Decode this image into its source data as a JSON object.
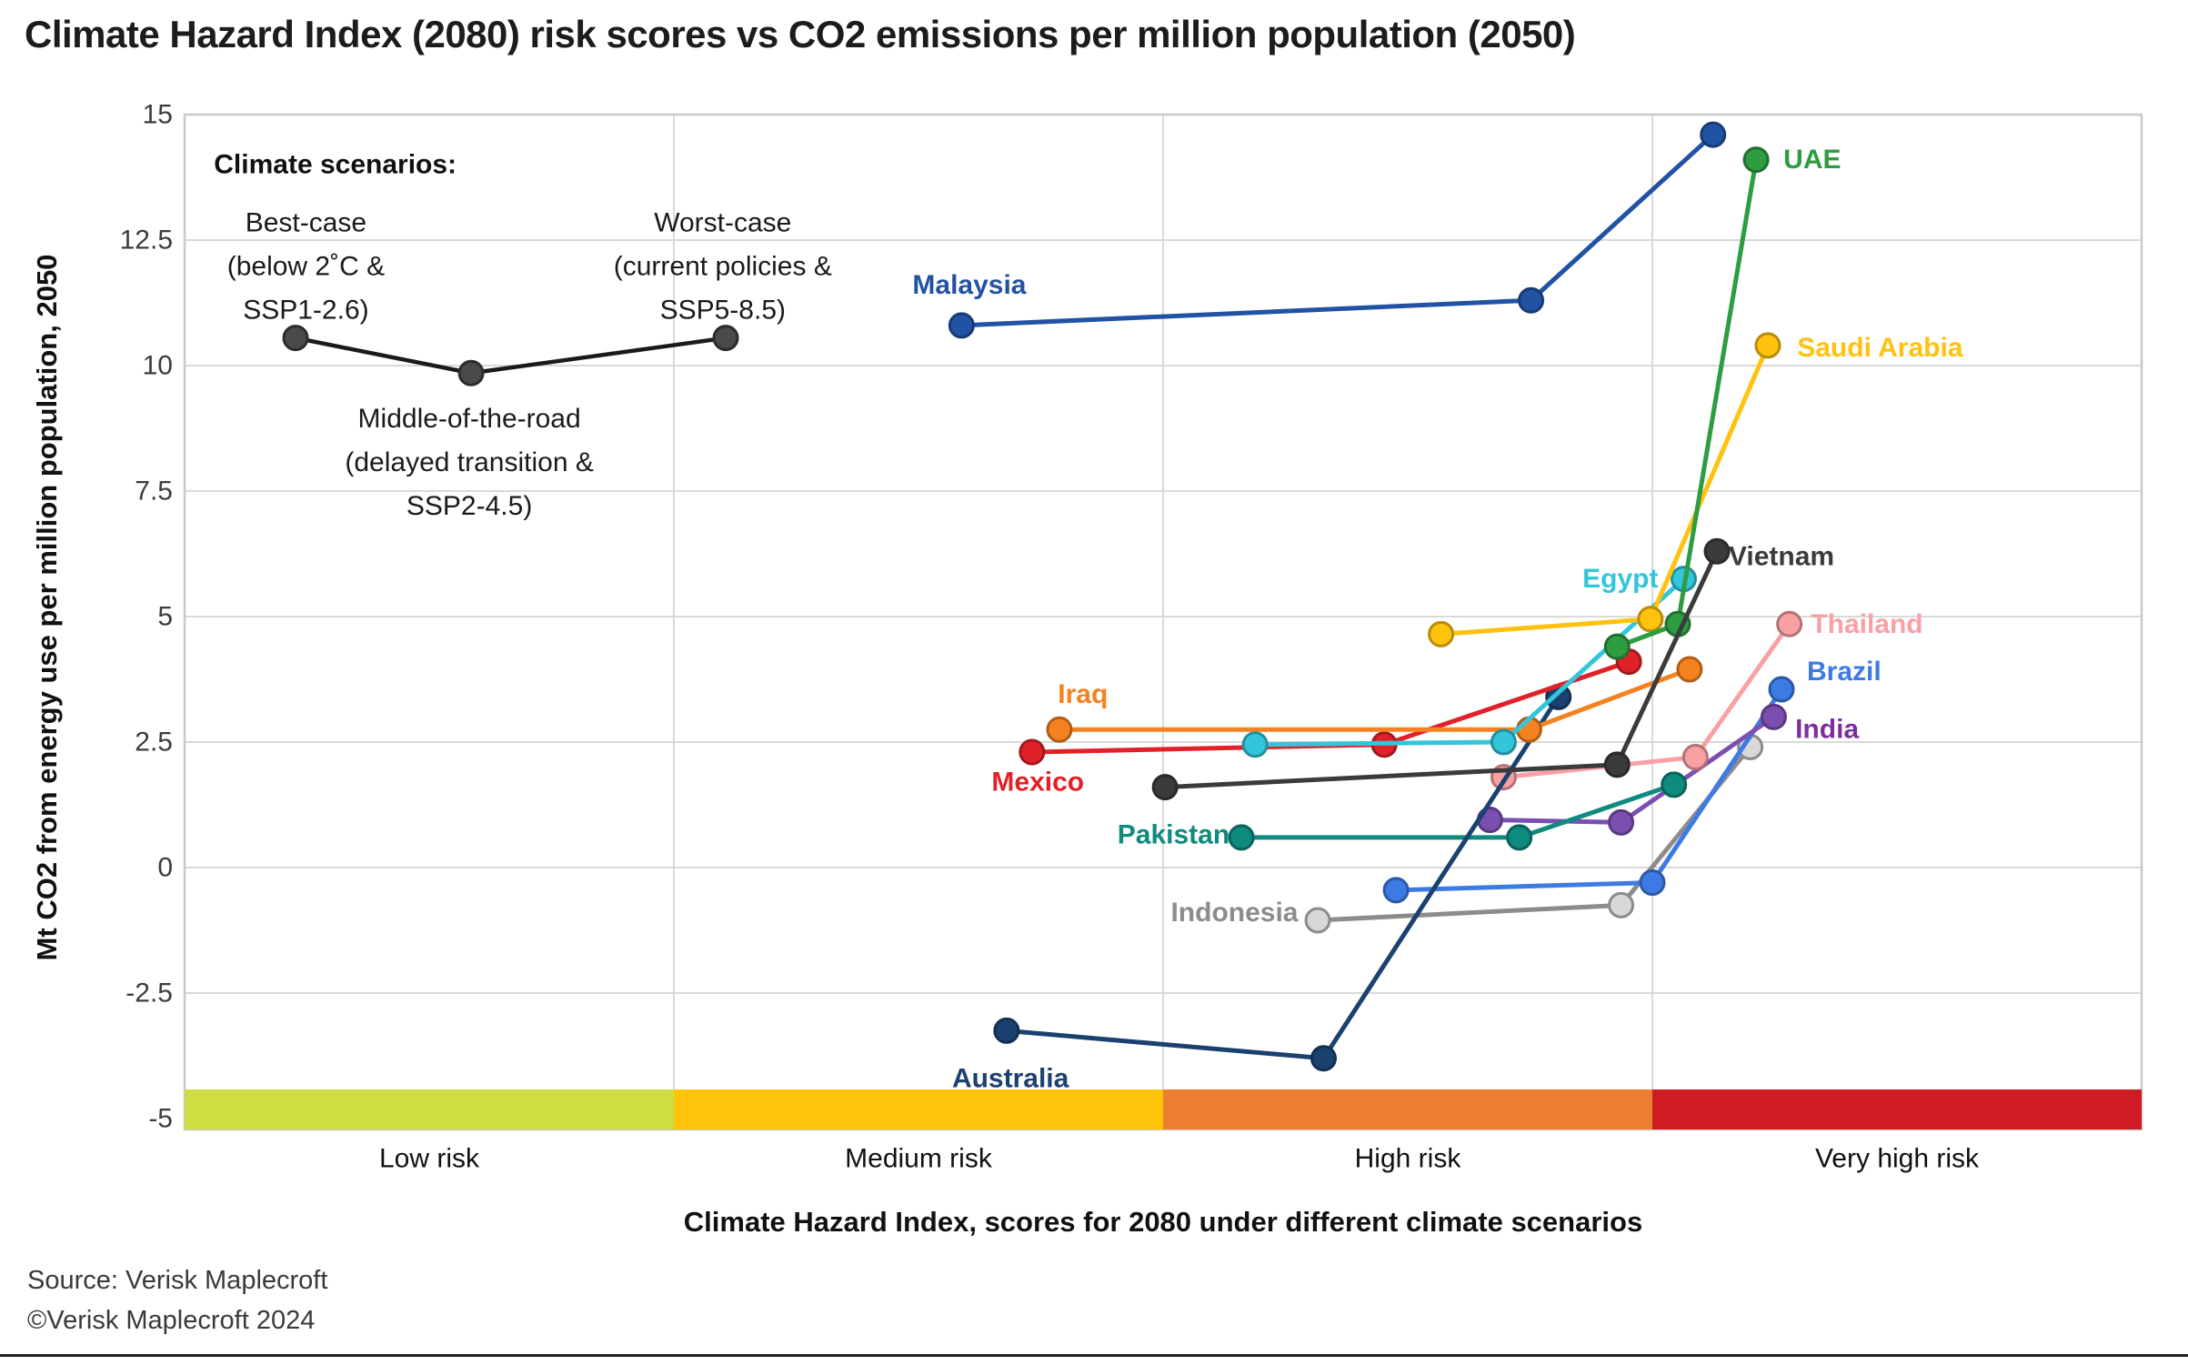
{
  "title": "Climate Hazard Index (2080) risk scores vs CO2 emissions per million population (2050)",
  "source": {
    "line1": "Source: Verisk Maplecroft",
    "line2": "©Verisk Maplecroft 2024"
  },
  "chart_data": {
    "type": "scatter",
    "title": "Climate Hazard Index (2080) risk scores vs CO2 emissions per million population (2050)",
    "xlabel": "Climate Hazard Index, scores for 2080 under different climate scenarios",
    "ylabel": "Mt CO2 from energy use per million population, 2050",
    "ylim": [
      -5,
      15
    ],
    "xlim": [
      0,
      100
    ],
    "x_unit_note": "hazard index position 0-100, shown only as quartile risk bands",
    "grid": true,
    "yticks": [
      {
        "value": 15,
        "label": "15"
      },
      {
        "value": 12.5,
        "label": "12.5"
      },
      {
        "value": 10,
        "label": "10"
      },
      {
        "value": 7.5,
        "label": "7.5"
      },
      {
        "value": 5,
        "label": "5"
      },
      {
        "value": 2.5,
        "label": "2.5"
      },
      {
        "value": 0,
        "label": "0"
      },
      {
        "value": -2.5,
        "label": "-2.5"
      },
      {
        "value": -5,
        "label": "-5"
      }
    ],
    "risk_bands": [
      {
        "label": "Low risk",
        "from": 0,
        "to": 25,
        "color": "#cedd3f"
      },
      {
        "label": "Medium risk",
        "from": 25,
        "to": 50,
        "color": "#ffc40a"
      },
      {
        "label": "High risk",
        "from": 50,
        "to": 75,
        "color": "#eb7e31"
      },
      {
        "label": "Very high risk",
        "from": 75,
        "to": 100,
        "color": "#ce1b24"
      }
    ],
    "scenarios": [
      "Best-case (below 2˚C & SSP1-2.6)",
      "Middle-of-the-road (delayed transition & SSP2-4.5)",
      "Worst-case (current policies & SSP5-8.5)"
    ],
    "scenario_legend": {
      "heading": {
        "text": "Climate scenarios:",
        "x": 1.5,
        "y": 14.0
      },
      "line_color": "#1a1a1a",
      "point_color": "#4a4a4a",
      "points": [
        {
          "x": 5.67,
          "y": 10.55
        },
        {
          "x": 14.64,
          "y": 9.85
        },
        {
          "x": 27.65,
          "y": 10.55
        }
      ],
      "labels": [
        {
          "lines": [
            "Best-case",
            "(below 2˚C &",
            "SSP1-2.6)"
          ],
          "x": 6.2,
          "y": 12.85
        },
        {
          "lines": [
            "Middle-of-the-road",
            "(delayed transition &",
            "SSP2-4.5)"
          ],
          "x": 14.55,
          "y": 8.95
        },
        {
          "lines": [
            "Worst-case",
            "(current policies &",
            "SSP5-8.5)"
          ],
          "x": 27.5,
          "y": 12.85
        }
      ]
    },
    "series": [
      {
        "name": "Indonesia",
        "color": "#8c8c8c",
        "point_fill": "#d8d8d8",
        "label_color": "#8c8c8c",
        "points": [
          [
            57.9,
            -1.05
          ],
          [
            73.4,
            -0.75
          ],
          [
            80.0,
            2.4
          ]
        ],
        "label": {
          "x": 56.9,
          "y": -0.9,
          "anchor": "end"
        }
      },
      {
        "name": "Brazil",
        "color": "#3d7be4",
        "points": [
          [
            61.9,
            -0.45
          ],
          [
            75.0,
            -0.3
          ],
          [
            81.6,
            3.55
          ]
        ],
        "label": {
          "x": 82.9,
          "y": 3.9,
          "anchor": "start"
        }
      },
      {
        "name": "India",
        "color": "#7b4fb0",
        "label_color": "#7d2e9e",
        "points": [
          [
            66.7,
            0.95
          ],
          [
            73.4,
            0.9
          ],
          [
            81.2,
            3.0
          ]
        ],
        "label": {
          "x": 82.3,
          "y": 2.75,
          "anchor": "start"
        }
      },
      {
        "name": "Pakistan",
        "color": "#0e8a7e",
        "points": [
          [
            54.0,
            0.6
          ],
          [
            68.2,
            0.6
          ],
          [
            76.1,
            1.65
          ]
        ],
        "label": {
          "x": 53.4,
          "y": 0.65,
          "anchor": "end"
        }
      },
      {
        "name": "Thailand",
        "color": "#f9a0a4",
        "points": [
          [
            67.4,
            1.8
          ],
          [
            77.2,
            2.2
          ],
          [
            82.0,
            4.85
          ]
        ],
        "label": {
          "x": 83.1,
          "y": 4.85,
          "anchor": "start"
        }
      },
      {
        "name": "Australia",
        "color": "#1a4170",
        "points": [
          [
            42.0,
            -3.25
          ],
          [
            58.2,
            -3.8
          ],
          [
            70.2,
            3.4
          ]
        ],
        "label": {
          "x": 42.2,
          "y": -4.2,
          "anchor": "middle"
        }
      },
      {
        "name": "Malaysia",
        "color": "#2152a3",
        "points": [
          [
            39.7,
            10.8
          ],
          [
            68.8,
            11.3
          ],
          [
            78.1,
            14.6
          ]
        ],
        "label": {
          "x": 40.1,
          "y": 11.6,
          "anchor": "middle"
        }
      },
      {
        "name": "Mexico",
        "color": "#e02128",
        "points": [
          [
            43.3,
            2.3
          ],
          [
            61.3,
            2.45
          ],
          [
            73.8,
            4.1
          ]
        ],
        "label": {
          "x": 43.6,
          "y": 1.7,
          "anchor": "middle"
        }
      },
      {
        "name": "Iraq",
        "color": "#f58220",
        "points": [
          [
            44.7,
            2.75
          ],
          [
            68.7,
            2.75
          ],
          [
            76.9,
            3.95
          ]
        ],
        "label": {
          "x": 45.9,
          "y": 3.45,
          "anchor": "middle"
        }
      },
      {
        "name": "Egypt",
        "color": "#33c5da",
        "points": [
          [
            54.7,
            2.45
          ],
          [
            67.4,
            2.5
          ],
          [
            76.6,
            5.75
          ]
        ],
        "label": {
          "x": 75.3,
          "y": 5.75,
          "anchor": "end"
        }
      },
      {
        "name": "Saudi Arabia",
        "color": "#ffc20e",
        "points": [
          [
            64.2,
            4.65
          ],
          [
            74.9,
            4.95
          ],
          [
            80.9,
            10.4
          ]
        ],
        "label": {
          "x": 82.4,
          "y": 10.35,
          "anchor": "start"
        }
      },
      {
        "name": "UAE",
        "color": "#2e9c41",
        "points": [
          [
            73.2,
            4.4
          ],
          [
            76.3,
            4.85
          ],
          [
            80.3,
            14.1
          ]
        ],
        "label": {
          "x": 81.7,
          "y": 14.1,
          "anchor": "start"
        }
      },
      {
        "name": "Vietnam",
        "color": "#3b3b3b",
        "points": [
          [
            50.1,
            1.6
          ],
          [
            73.2,
            2.05
          ],
          [
            78.3,
            6.3
          ]
        ],
        "label": {
          "x": 78.9,
          "y": 6.2,
          "anchor": "start"
        }
      }
    ]
  }
}
